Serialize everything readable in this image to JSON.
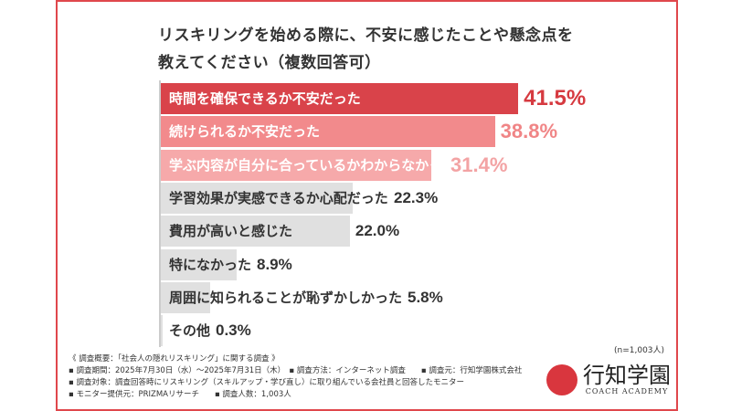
{
  "chart_data": {
    "type": "bar",
    "orientation": "horizontal",
    "title": "リスキリングを始める際に、不安に感じたことや懸念点を\n教えてください（複数回答可）",
    "title_lines": [
      "リスキリングを始める際に、不安に感じたことや懸念点を",
      "教えてください（複数回答可）"
    ],
    "categories": [
      "時間を確保できるか不安だった",
      "続けられるか不安だった",
      "学ぶ内容が自分に合っているかわからなかった",
      "学習効果が実感できるか心配だった",
      "費用が高いと感じた",
      "特になかった",
      "周囲に知られることが恥ずかしかった",
      "その他"
    ],
    "values": [
      41.5,
      38.8,
      31.4,
      22.3,
      22.0,
      8.9,
      5.8,
      0.3
    ],
    "value_labels": [
      "41.5%",
      "38.8%",
      "31.4%",
      "22.3%",
      "22.0%",
      "8.9%",
      "5.8%",
      "0.3%"
    ],
    "bar_colors": [
      "#d9434a",
      "#f28a8c",
      "#f6a9aa",
      "#e0e0e0",
      "#e0e0e0",
      "#e0e0e0",
      "#e0e0e0",
      "#e0e0e0"
    ],
    "label_colors": [
      "#ffffff",
      "#ffffff",
      "#ffffff",
      "#333333",
      "#333333",
      "#333333",
      "#333333",
      "#333333"
    ],
    "pct_colors": [
      "#d63a40",
      "#f08586",
      "#f3a3a4",
      "#333333",
      "#333333",
      "#333333",
      "#333333",
      "#333333"
    ],
    "xlim": [
      0,
      45
    ],
    "sample": "(n=1,003人)"
  },
  "notes": [
    "《 調査概要：「社会人の隠れリスキリング」に関する調査 》",
    "▪ 調査期間：2025年7月30日（水）～2025年7月31日（木）　▪ 調査方法：インターネット調査　　▪ 調査元：行知学園株式会社",
    "▪ 調査対象：調査回答時にリスキリング（スキルアップ・学び直し）に取り組んでいる会社員と回答したモニター",
    "▪ モニター提供元：PRIZMAリサーチ　　▪ 調査人数：1,003人"
  ],
  "logo": {
    "name": "行知学園",
    "sub": "COACH ACADEMY"
  }
}
